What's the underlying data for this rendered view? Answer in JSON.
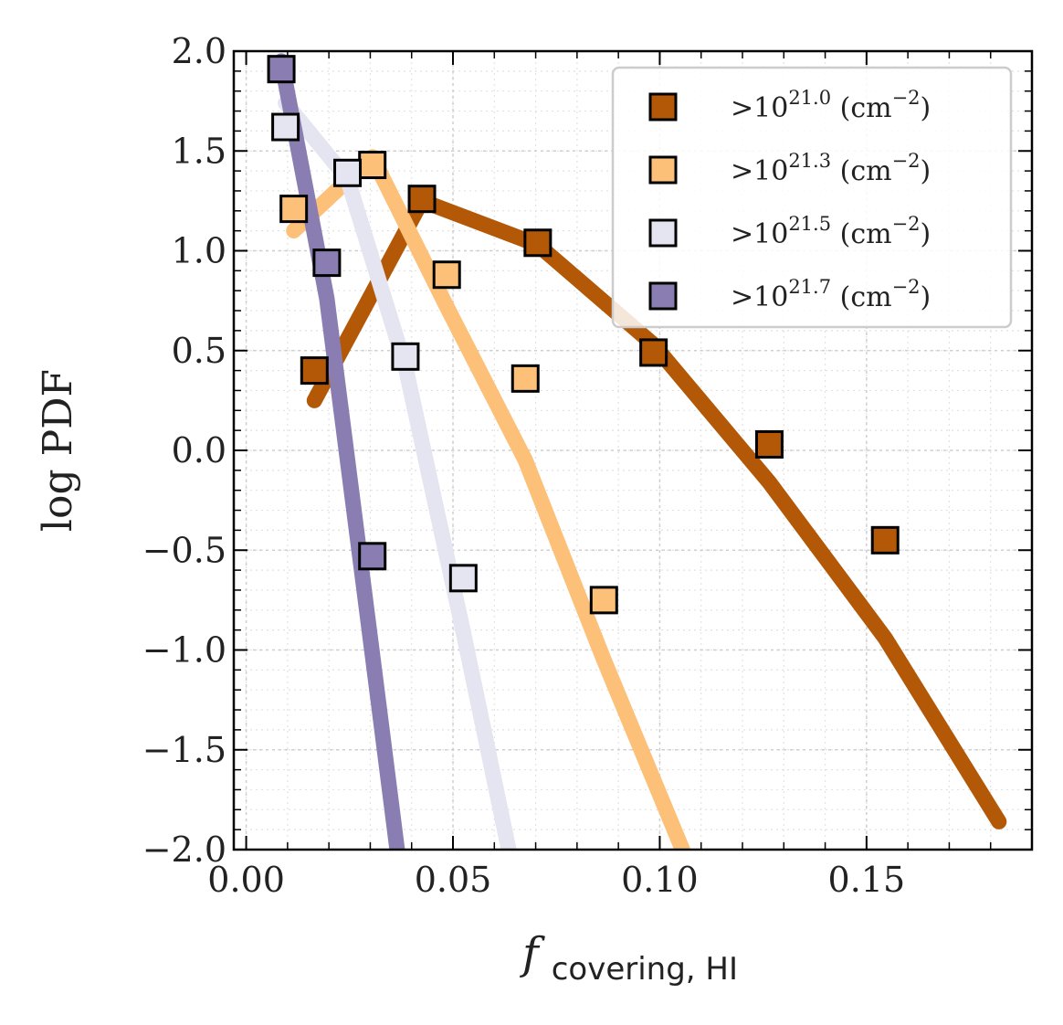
{
  "chart_data": {
    "type": "line",
    "title": "",
    "xlabel_main": "f",
    "xlabel_sub": "covering, HI",
    "ylabel": "log PDF",
    "xlim": [
      -0.003,
      0.19
    ],
    "ylim": [
      -2.0,
      2.0
    ],
    "xticks": [
      0.0,
      0.05,
      0.1,
      0.15
    ],
    "xtick_labels": [
      "0.00",
      "0.05",
      "0.10",
      "0.15"
    ],
    "yticks": [
      2.0,
      1.5,
      1.0,
      0.5,
      0.0,
      -0.5,
      -1.0,
      -1.5,
      -2.0
    ],
    "ytick_labels": [
      "2.0",
      "1.5",
      "1.0",
      "0.5",
      "0.0",
      "−0.5",
      "−1.0",
      "−1.5",
      "−2.0"
    ],
    "grid": true,
    "legend_position": "top-right",
    "series": [
      {
        "name": ">10^21.0 (cm^-2)",
        "legend_prefix": ">10",
        "legend_exp": "21.0",
        "legend_unit_pre": " (cm",
        "legend_unit_exp": "−2",
        "legend_unit_post": ")",
        "color": "#b35806",
        "points_x": [
          0.0165,
          0.0425,
          0.0705,
          0.0985,
          0.1265,
          0.1545
        ],
        "points_y": [
          0.4,
          1.26,
          1.04,
          0.49,
          0.03,
          -0.45
        ],
        "line_x": [
          0.0165,
          0.0425,
          0.0705,
          0.0985,
          0.1265,
          0.1545,
          0.182
        ],
        "line_y": [
          0.25,
          1.25,
          1.03,
          0.53,
          -0.16,
          -0.94,
          -1.86
        ]
      },
      {
        "name": ">10^21.3 (cm^-2)",
        "legend_prefix": ">10",
        "legend_exp": "21.3",
        "legend_unit_pre": " (cm",
        "legend_unit_exp": "−2",
        "legend_unit_post": ")",
        "color": "#fdc079",
        "points_x": [
          0.0115,
          0.0305,
          0.0485,
          0.0675,
          0.0865
        ],
        "points_y": [
          1.21,
          1.43,
          0.88,
          0.36,
          -0.75
        ],
        "line_x": [
          0.0115,
          0.0305,
          0.0485,
          0.0675,
          0.0865,
          0.1055
        ],
        "line_y": [
          1.1,
          1.47,
          0.72,
          -0.05,
          -1.05,
          -2.0
        ]
      },
      {
        "name": ">10^21.5 (cm^-2)",
        "legend_prefix": ">10",
        "legend_exp": "21.5",
        "legend_unit_pre": " (cm",
        "legend_unit_exp": "−2",
        "legend_unit_post": ")",
        "color": "#e4e5f0",
        "points_x": [
          0.0095,
          0.0245,
          0.0385,
          0.0525
        ],
        "points_y": [
          1.62,
          1.39,
          0.47,
          -0.64
        ],
        "line_x": [
          0.0095,
          0.0245,
          0.0385,
          0.0525,
          0.0635
        ],
        "line_y": [
          1.74,
          1.36,
          0.42,
          -0.91,
          -2.0
        ]
      },
      {
        "name": ">10^21.7 (cm^-2)",
        "legend_prefix": ">10",
        "legend_exp": "21.7",
        "legend_unit_pre": " (cm",
        "legend_unit_exp": "−2",
        "legend_unit_post": ")",
        "color": "#8a7db2",
        "points_x": [
          0.0085,
          0.0195,
          0.0305
        ],
        "points_y": [
          1.91,
          0.94,
          -0.53
        ],
        "line_x": [
          0.0085,
          0.0195,
          0.0305,
          0.0365
        ],
        "line_y": [
          1.95,
          0.76,
          -1.02,
          -2.0
        ]
      }
    ]
  }
}
